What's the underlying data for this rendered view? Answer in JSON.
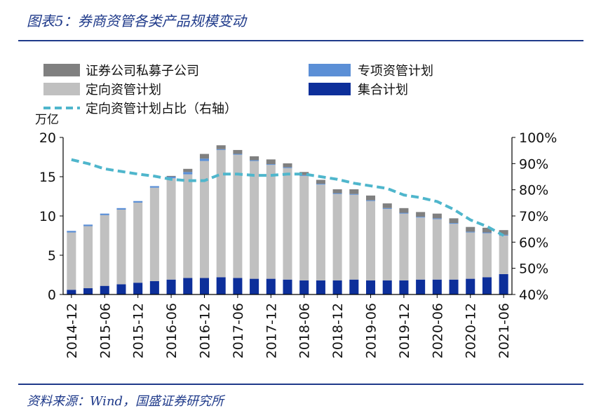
{
  "title": "图表5：券商资管各类产品规模变动",
  "source": "资料来源：Wind，国盛证券研究所",
  "colors": {
    "collective": "#0d2f9a",
    "directed": "#c0c0c0",
    "special": "#5b8fd6",
    "subsidiary": "#808080",
    "ratio": "#4fb6cc",
    "rule": "#1f3a8a"
  },
  "chart_data": {
    "type": "bar",
    "stacked": true,
    "left_unit": "万亿",
    "legend": {
      "subsidiary": "证券公司私募子公司",
      "special": "专项资管计划",
      "directed": "定向资管计划",
      "collective": "集合计划",
      "ratio": "定向资管计划占比（右轴）"
    },
    "categories": [
      "2014-12",
      "2015-03",
      "2015-06",
      "2015-09",
      "2015-12",
      "2016-03",
      "2016-06",
      "2016-09",
      "2016-12",
      "2017-03",
      "2017-06",
      "2017-09",
      "2017-12",
      "2018-03",
      "2018-06",
      "2018-09",
      "2018-12",
      "2019-03",
      "2019-06",
      "2019-09",
      "2019-12",
      "2020-03",
      "2020-06",
      "2020-09",
      "2020-12",
      "2021-03",
      "2021-06"
    ],
    "x_tick_labels": [
      "2014-12",
      "2015-06",
      "2015-12",
      "2016-06",
      "2016-12",
      "2017-06",
      "2017-12",
      "2018-06",
      "2018-12",
      "2019-06",
      "2019-12",
      "2020-06",
      "2020-12",
      "2021-06"
    ],
    "series": [
      {
        "key": "collective",
        "name": "集合计划",
        "values": [
          0.6,
          0.8,
          1.1,
          1.3,
          1.5,
          1.7,
          1.9,
          2.1,
          2.1,
          2.2,
          2.1,
          2.0,
          2.0,
          1.9,
          1.8,
          1.8,
          1.8,
          1.9,
          1.8,
          1.8,
          1.8,
          1.9,
          1.9,
          1.9,
          2.0,
          2.2,
          2.6
        ]
      },
      {
        "key": "directed",
        "name": "定向资管计划",
        "values": [
          7.3,
          7.9,
          9.0,
          9.5,
          10.2,
          11.9,
          12.9,
          13.2,
          14.9,
          16.2,
          15.7,
          15.0,
          14.5,
          14.2,
          13.3,
          12.2,
          11.0,
          10.8,
          10.1,
          9.1,
          8.5,
          7.9,
          7.7,
          7.1,
          5.9,
          5.6,
          4.9
        ]
      },
      {
        "key": "special",
        "name": "专项资管计划",
        "values": [
          0.2,
          0.2,
          0.2,
          0.2,
          0.2,
          0.2,
          0.2,
          0.3,
          0.3,
          0.1,
          0.1,
          0.1,
          0.1,
          0.1,
          0.1,
          0.1,
          0.1,
          0.1,
          0.1,
          0.1,
          0.1,
          0.1,
          0.1,
          0.1,
          0.1,
          0.1,
          0.1
        ]
      },
      {
        "key": "subsidiary",
        "name": "证券公司私募子公司",
        "values": [
          0.0,
          0.0,
          0.0,
          0.0,
          0.0,
          0.0,
          0.1,
          0.4,
          0.6,
          0.5,
          0.5,
          0.5,
          0.6,
          0.5,
          0.4,
          0.5,
          0.5,
          0.6,
          0.6,
          0.6,
          0.6,
          0.6,
          0.6,
          0.6,
          0.6,
          0.6,
          0.6
        ]
      }
    ],
    "ratio": {
      "name": "定向资管计划占比（右轴）",
      "values": [
        91.5,
        90,
        88,
        87,
        86,
        85.2,
        84,
        83.5,
        83.5,
        86,
        86,
        85.5,
        85.5,
        86,
        86,
        85,
        84,
        82.5,
        81.5,
        80.5,
        78,
        77,
        75.5,
        72.5,
        68.5,
        66,
        62.5
      ]
    },
    "ylim": [
      0,
      20
    ],
    "yticks": [
      0,
      5,
      10,
      15,
      20
    ],
    "y2lim": [
      40,
      100
    ],
    "y2ticks": [
      "40%",
      "50%",
      "60%",
      "70%",
      "80%",
      "90%",
      "100%"
    ],
    "legend_position": "top-left",
    "grid": false
  }
}
